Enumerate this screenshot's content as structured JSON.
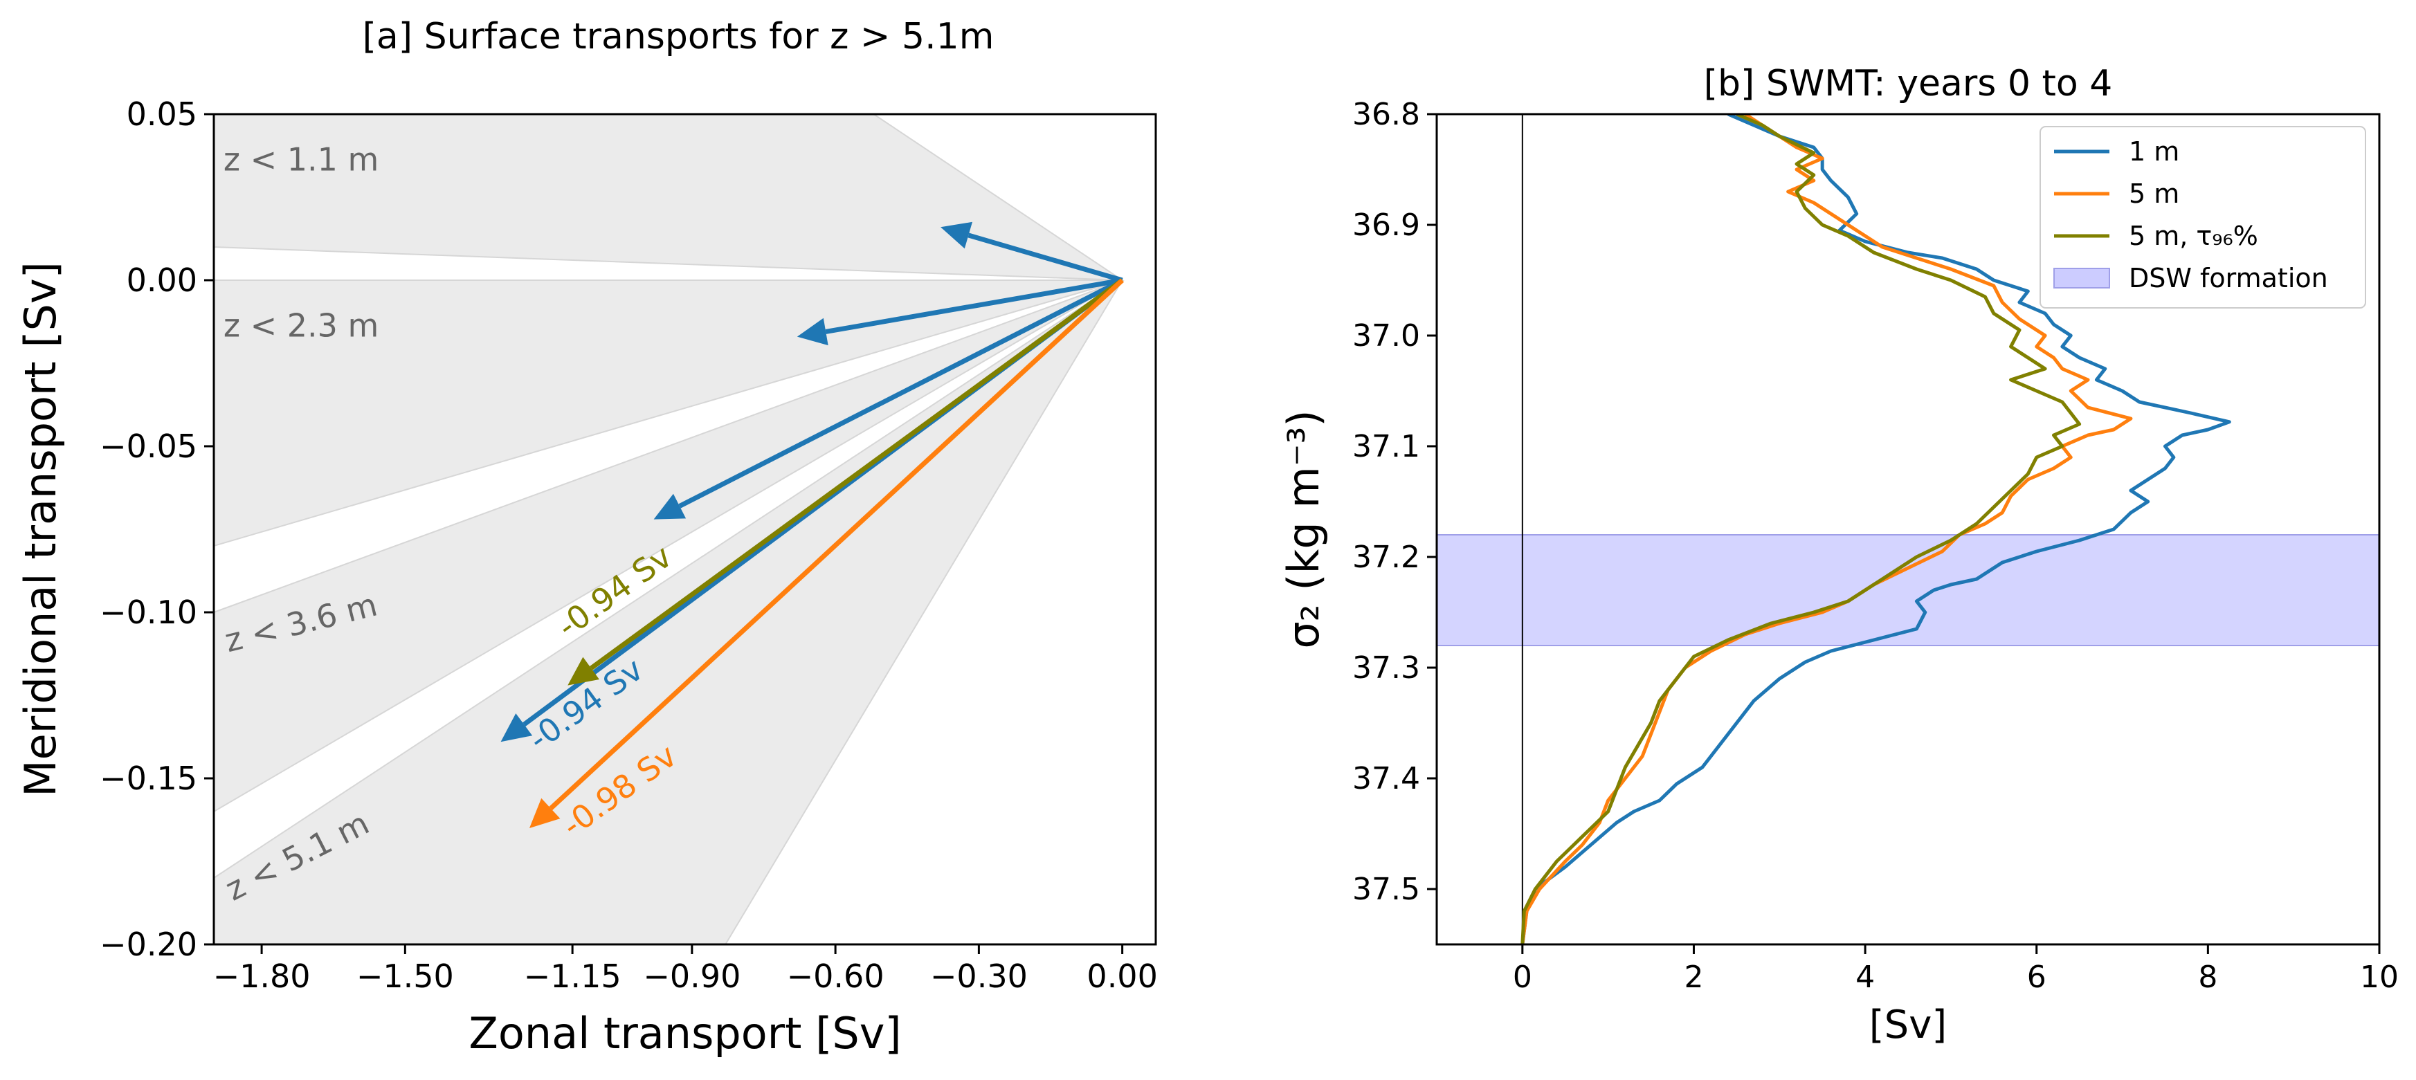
{
  "figure": {
    "panel_a_title": "[a] Surface transports for z > 5.1m",
    "panel_b_title": "[b] SWMT: years 0 to 4"
  },
  "chart_data": [
    {
      "type": "quiver",
      "title": "[a] Surface transports for z > 5.1m",
      "xlabel": "Zonal transport [Sv]",
      "ylabel": "Meridional transport  [Sv]",
      "xlim": [
        -1.9,
        0.07
      ],
      "ylim": [
        -0.2,
        0.05
      ],
      "xticks": [
        {
          "value": -1.8,
          "label": "−1.80"
        },
        {
          "value": -1.5,
          "label": "−1.50"
        },
        {
          "value": -1.15,
          "label": "−1.15"
        },
        {
          "value": -0.9,
          "label": "−0.90"
        },
        {
          "value": -0.6,
          "label": "−0.60"
        },
        {
          "value": -0.3,
          "label": "−0.30"
        },
        {
          "value": 0.0,
          "label": "0.00"
        }
      ],
      "yticks": [
        {
          "value": 0.05,
          "label": "0.05"
        },
        {
          "value": 0.0,
          "label": "0.00"
        },
        {
          "value": -0.05,
          "label": "−0.05"
        },
        {
          "value": -0.1,
          "label": "−0.10"
        },
        {
          "value": -0.15,
          "label": "−0.15"
        },
        {
          "value": -0.2,
          "label": "−0.20"
        }
      ],
      "wedges": [
        {
          "label": "z < 1.1 m",
          "edges": [
            [
              -0.52,
              0.05
            ],
            [
              -1.9,
              0.01
            ]
          ],
          "label_at": [
            -1.88,
            0.033
          ],
          "label_rotation": 0
        },
        {
          "label": "z < 2.3 m",
          "edges": [
            [
              -1.9,
              0.0
            ],
            [
              -1.9,
              -0.08
            ]
          ],
          "label_at": [
            -1.88,
            -0.017
          ],
          "label_rotation": 0
        },
        {
          "label": "z < 3.6 m",
          "edges": [
            [
              -1.9,
              -0.1
            ],
            [
              -1.9,
              -0.16
            ]
          ],
          "label_at": [
            -1.87,
            -0.112
          ],
          "label_rotation": -14
        },
        {
          "label": "z < 5.1 m",
          "edges": [
            [
              -1.9,
              -0.18
            ],
            [
              -0.83,
              -0.2
            ]
          ],
          "label_at": [
            -1.86,
            -0.187
          ],
          "label_rotation": -27
        }
      ],
      "arrows": [
        {
          "color": "#1f77b4",
          "u": -0.38,
          "v": 0.016
        },
        {
          "color": "#1f77b4",
          "u": -0.68,
          "v": -0.017
        },
        {
          "color": "#1f77b4",
          "u": -0.98,
          "v": -0.072
        },
        {
          "color": "#1f77b4",
          "u": -1.3,
          "v": -0.139,
          "label": "-0.94 Sv",
          "label_at": [
            -1.22,
            -0.142
          ],
          "label_rotation": -36
        },
        {
          "color": "#808000",
          "u": -1.16,
          "v": -0.122,
          "label": "-0.94 Sv",
          "label_at": [
            -1.16,
            -0.108
          ],
          "label_rotation": -36
        },
        {
          "color": "#ff7f0e",
          "u": -1.24,
          "v": -0.165,
          "label": "-0.98 Sv",
          "label_at": [
            -1.15,
            -0.168
          ],
          "label_rotation": -36
        }
      ]
    },
    {
      "type": "line",
      "title": "[b] SWMT: years 0 to 4",
      "xlabel": "[Sv]",
      "ylabel": "σ₂ (kg m⁻³)",
      "xlim": [
        -1,
        10
      ],
      "ylim": [
        37.55,
        36.8
      ],
      "y_inverted": true,
      "xticks": [
        0,
        2,
        4,
        6,
        8,
        10
      ],
      "yticks": [
        36.8,
        36.9,
        37.0,
        37.1,
        37.2,
        37.3,
        37.4,
        37.5
      ],
      "vertical_line_at": 0,
      "shaded_band": {
        "label": "DSW formation",
        "y_from": 37.18,
        "y_to": 37.28,
        "color": "#ccccff"
      },
      "legend": {
        "position": "top-right",
        "entries": [
          "1 m",
          "5 m",
          "5 m, τ₉₆%",
          "DSW formation"
        ]
      },
      "series": [
        {
          "name": "1 m",
          "color": "#1f77b4",
          "points": [
            [
              0.0,
              37.55
            ],
            [
              0.05,
              37.52
            ],
            [
              0.15,
              37.5
            ],
            [
              0.5,
              37.48
            ],
            [
              0.8,
              37.46
            ],
            [
              1.1,
              37.44
            ],
            [
              1.3,
              37.43
            ],
            [
              1.6,
              37.42
            ],
            [
              1.8,
              37.405
            ],
            [
              2.1,
              37.39
            ],
            [
              2.3,
              37.37
            ],
            [
              2.5,
              37.35
            ],
            [
              2.7,
              37.33
            ],
            [
              3.0,
              37.31
            ],
            [
              3.3,
              37.295
            ],
            [
              3.6,
              37.285
            ],
            [
              4.1,
              37.275
            ],
            [
              4.6,
              37.265
            ],
            [
              4.7,
              37.25
            ],
            [
              4.6,
              37.24
            ],
            [
              4.8,
              37.23
            ],
            [
              5.0,
              37.225
            ],
            [
              5.3,
              37.22
            ],
            [
              5.6,
              37.205
            ],
            [
              6.0,
              37.195
            ],
            [
              6.5,
              37.185
            ],
            [
              6.9,
              37.175
            ],
            [
              7.1,
              37.16
            ],
            [
              7.3,
              37.15
            ],
            [
              7.1,
              37.14
            ],
            [
              7.3,
              37.13
            ],
            [
              7.5,
              37.12
            ],
            [
              7.6,
              37.11
            ],
            [
              7.5,
              37.1
            ],
            [
              7.7,
              37.09
            ],
            [
              8.0,
              37.085
            ],
            [
              8.25,
              37.078
            ],
            [
              7.8,
              37.07
            ],
            [
              7.2,
              37.06
            ],
            [
              7.0,
              37.05
            ],
            [
              6.7,
              37.04
            ],
            [
              6.8,
              37.03
            ],
            [
              6.5,
              37.02
            ],
            [
              6.3,
              37.01
            ],
            [
              6.4,
              37.0
            ],
            [
              6.2,
              36.99
            ],
            [
              6.1,
              36.98
            ],
            [
              5.8,
              36.97
            ],
            [
              5.9,
              36.96
            ],
            [
              5.5,
              36.95
            ],
            [
              5.3,
              36.94
            ],
            [
              4.9,
              36.93
            ],
            [
              4.5,
              36.925
            ],
            [
              4.0,
              36.915
            ],
            [
              3.7,
              36.905
            ],
            [
              3.9,
              36.89
            ],
            [
              3.8,
              36.875
            ],
            [
              3.6,
              36.86
            ],
            [
              3.5,
              36.85
            ],
            [
              3.5,
              36.84
            ],
            [
              3.4,
              36.83
            ],
            [
              3.0,
              36.82
            ],
            [
              2.7,
              36.81
            ],
            [
              2.4,
              36.8
            ]
          ]
        },
        {
          "name": "5 m",
          "color": "#ff7f0e",
          "points": [
            [
              0.0,
              37.55
            ],
            [
              0.05,
              37.52
            ],
            [
              0.2,
              37.5
            ],
            [
              0.5,
              37.475
            ],
            [
              0.7,
              37.46
            ],
            [
              0.9,
              37.44
            ],
            [
              1.0,
              37.42
            ],
            [
              1.2,
              37.4
            ],
            [
              1.4,
              37.38
            ],
            [
              1.5,
              37.36
            ],
            [
              1.6,
              37.34
            ],
            [
              1.7,
              37.32
            ],
            [
              1.9,
              37.3
            ],
            [
              2.2,
              37.285
            ],
            [
              2.6,
              37.27
            ],
            [
              3.0,
              37.26
            ],
            [
              3.5,
              37.25
            ],
            [
              3.8,
              37.24
            ],
            [
              4.1,
              37.225
            ],
            [
              4.5,
              37.21
            ],
            [
              4.9,
              37.195
            ],
            [
              5.1,
              37.18
            ],
            [
              5.4,
              37.17
            ],
            [
              5.6,
              37.16
            ],
            [
              5.7,
              37.145
            ],
            [
              5.9,
              37.13
            ],
            [
              6.2,
              37.12
            ],
            [
              6.4,
              37.11
            ],
            [
              6.3,
              37.1
            ],
            [
              6.6,
              37.09
            ],
            [
              6.9,
              37.085
            ],
            [
              7.1,
              37.075
            ],
            [
              6.6,
              37.065
            ],
            [
              6.4,
              37.05
            ],
            [
              6.6,
              37.04
            ],
            [
              6.3,
              37.03
            ],
            [
              6.2,
              37.02
            ],
            [
              6.0,
              37.01
            ],
            [
              6.1,
              37.0
            ],
            [
              5.8,
              36.985
            ],
            [
              5.6,
              36.97
            ],
            [
              5.5,
              36.955
            ],
            [
              5.0,
              36.94
            ],
            [
              4.6,
              36.93
            ],
            [
              4.2,
              36.92
            ],
            [
              3.9,
              36.905
            ],
            [
              3.6,
              36.89
            ],
            [
              3.4,
              36.88
            ],
            [
              3.1,
              36.87
            ],
            [
              3.4,
              36.86
            ],
            [
              3.2,
              36.85
            ],
            [
              3.5,
              36.84
            ],
            [
              3.2,
              36.83
            ],
            [
              2.9,
              36.815
            ],
            [
              2.6,
              36.8
            ]
          ]
        },
        {
          "name": "5 m, τ₉₆%",
          "color": "#808000",
          "points": [
            [
              0.0,
              37.55
            ],
            [
              0.02,
              37.52
            ],
            [
              0.15,
              37.5
            ],
            [
              0.4,
              37.475
            ],
            [
              0.6,
              37.46
            ],
            [
              0.8,
              37.445
            ],
            [
              1.0,
              37.43
            ],
            [
              1.1,
              37.41
            ],
            [
              1.2,
              37.39
            ],
            [
              1.35,
              37.37
            ],
            [
              1.5,
              37.35
            ],
            [
              1.6,
              37.33
            ],
            [
              1.8,
              37.31
            ],
            [
              2.0,
              37.29
            ],
            [
              2.4,
              37.275
            ],
            [
              2.9,
              37.26
            ],
            [
              3.4,
              37.25
            ],
            [
              3.8,
              37.24
            ],
            [
              4.2,
              37.22
            ],
            [
              4.6,
              37.2
            ],
            [
              5.0,
              37.185
            ],
            [
              5.3,
              37.17
            ],
            [
              5.5,
              37.155
            ],
            [
              5.7,
              37.14
            ],
            [
              5.9,
              37.125
            ],
            [
              6.0,
              37.11
            ],
            [
              6.3,
              37.1
            ],
            [
              6.2,
              37.09
            ],
            [
              6.5,
              37.08
            ],
            [
              6.3,
              37.06
            ],
            [
              6.0,
              37.05
            ],
            [
              5.7,
              37.04
            ],
            [
              6.1,
              37.03
            ],
            [
              5.9,
              37.02
            ],
            [
              5.7,
              37.01
            ],
            [
              5.8,
              36.995
            ],
            [
              5.5,
              36.98
            ],
            [
              5.4,
              36.965
            ],
            [
              5.0,
              36.95
            ],
            [
              4.6,
              36.94
            ],
            [
              4.1,
              36.925
            ],
            [
              3.8,
              36.91
            ],
            [
              3.5,
              36.9
            ],
            [
              3.3,
              36.885
            ],
            [
              3.2,
              36.87
            ],
            [
              3.4,
              36.855
            ],
            [
              3.2,
              36.845
            ],
            [
              3.4,
              36.835
            ],
            [
              3.0,
              36.82
            ],
            [
              2.8,
              36.81
            ],
            [
              2.5,
              36.8
            ]
          ]
        }
      ]
    }
  ]
}
